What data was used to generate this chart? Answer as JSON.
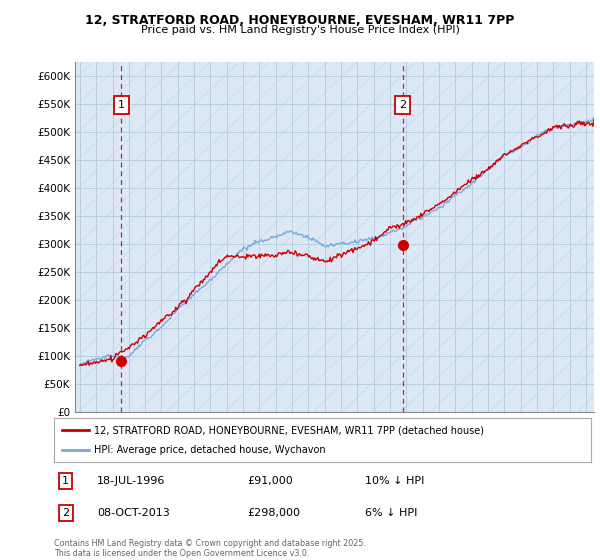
{
  "title_line1": "12, STRATFORD ROAD, HONEYBOURNE, EVESHAM, WR11 7PP",
  "title_line2": "Price paid vs. HM Land Registry's House Price Index (HPI)",
  "ylabel_ticks": [
    "£0",
    "£50K",
    "£100K",
    "£150K",
    "£200K",
    "£250K",
    "£300K",
    "£350K",
    "£400K",
    "£450K",
    "£500K",
    "£550K",
    "£600K"
  ],
  "ytick_vals": [
    0,
    50000,
    100000,
    150000,
    200000,
    250000,
    300000,
    350000,
    400000,
    450000,
    500000,
    550000,
    600000
  ],
  "ylim": [
    0,
    625000
  ],
  "xlim_start": 1993.7,
  "xlim_end": 2025.5,
  "sale1_year": 1996.54,
  "sale1_price": 91000,
  "sale2_year": 2013.77,
  "sale2_price": 298000,
  "legend_line1": "12, STRATFORD ROAD, HONEYBOURNE, EVESHAM, WR11 7PP (detached house)",
  "legend_line2": "HPI: Average price, detached house, Wychavon",
  "annotation1_date": "18-JUL-1996",
  "annotation1_price": "£91,000",
  "annotation1_hpi": "10% ↓ HPI",
  "annotation2_date": "08-OCT-2013",
  "annotation2_price": "£298,000",
  "annotation2_hpi": "6% ↓ HPI",
  "footer": "Contains HM Land Registry data © Crown copyright and database right 2025.\nThis data is licensed under the Open Government Licence v3.0.",
  "color_sale": "#cc0000",
  "color_hpi": "#7aaadd",
  "plot_bg": "#dce8f5",
  "grid_color": "#b8cfe0",
  "hatch_color": "#c8dcea"
}
